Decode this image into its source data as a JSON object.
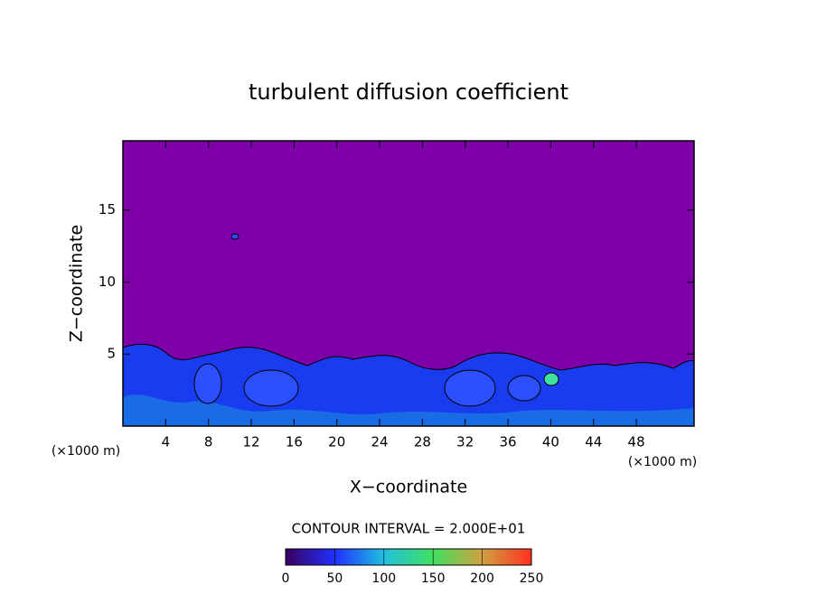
{
  "chart_data": {
    "type": "contour",
    "title": "turbulent diffusion coefficient",
    "xlabel": "X−coordinate",
    "ylabel": "Z−coordinate",
    "x_unit": "(×1000 m)",
    "y_unit": "(×1000 m)",
    "xlim": [
      0,
      53.4
    ],
    "xticks": [
      4,
      8,
      12,
      16,
      20,
      24,
      28,
      32,
      36,
      40,
      44,
      48
    ],
    "ylim": [
      0,
      19.8
    ],
    "yticks": [
      5,
      10,
      15
    ],
    "annotation": "CONTOUR INTERVAL = 2.000E+01",
    "colorbar": {
      "lim": [
        0,
        250
      ],
      "ticks": [
        0,
        50,
        100,
        150,
        200,
        250
      ]
    }
  }
}
